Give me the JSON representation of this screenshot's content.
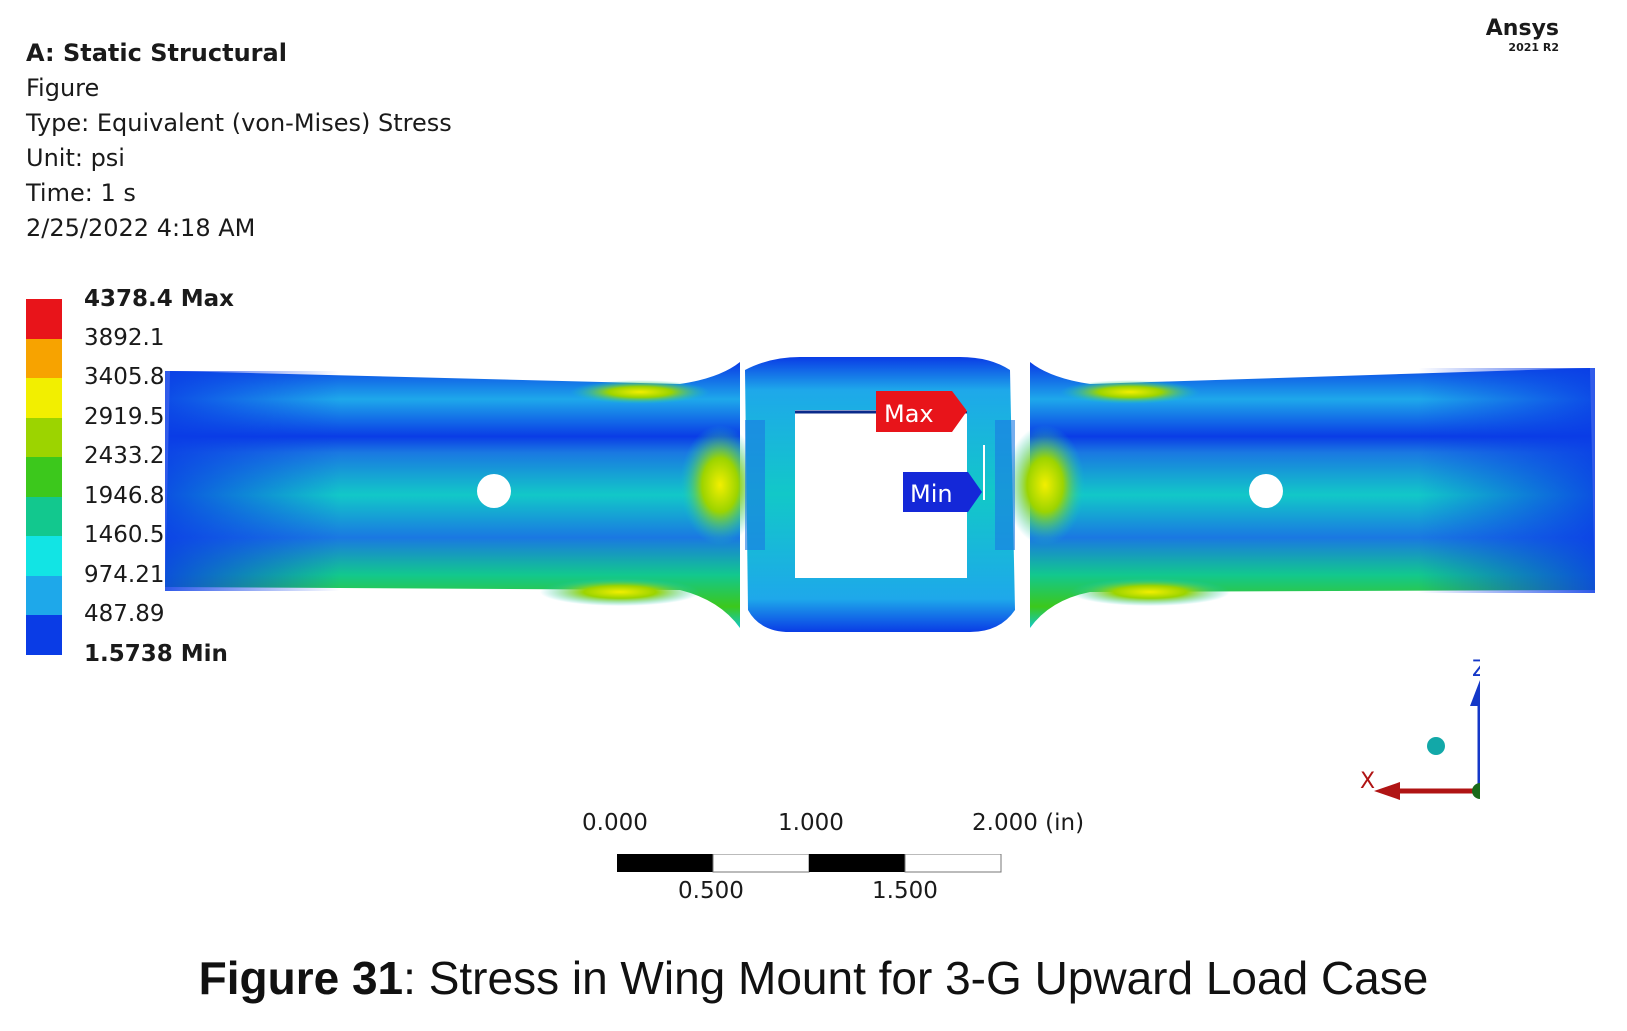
{
  "header": {
    "title": "A: Static Structural",
    "lines": [
      "Figure",
      "Type: Equivalent (von-Mises) Stress",
      "Unit: psi",
      "Time: 1 s",
      "2/25/2022 4:18 AM"
    ]
  },
  "brand": {
    "name": "Ansys",
    "version": "2021 R2"
  },
  "legend": {
    "labels": [
      "4378.4 Max",
      "3892.1",
      "3405.8",
      "2919.5",
      "2433.2",
      "1946.8",
      "1460.5",
      "974.21",
      "487.89",
      "1.5738 Min"
    ],
    "colors": [
      "#e8141a",
      "#f7a300",
      "#f2ef00",
      "#9cd400",
      "#3cc81c",
      "#12c88e",
      "#12e4e4",
      "#1ea8ea",
      "#0a3ce6"
    ]
  },
  "probes": {
    "max_label": "Max",
    "min_label": "Min"
  },
  "triad": {
    "x_label": "X",
    "z_label": "Z"
  },
  "scale_bar": {
    "top_ticks": [
      "0.000",
      "1.000",
      "2.000 (in)"
    ],
    "bottom_ticks": [
      "0.500",
      "1.500"
    ]
  },
  "caption": {
    "number": "Figure 31",
    "text": ": Stress in Wing Mount for 3-G Upward Load Case"
  }
}
